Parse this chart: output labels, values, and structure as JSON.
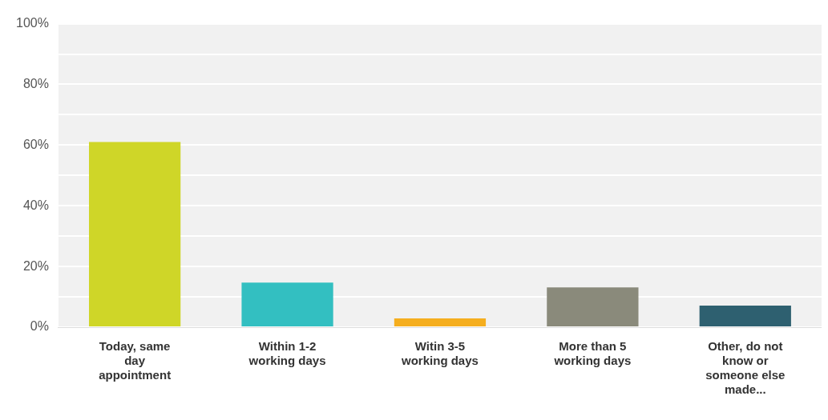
{
  "chart_data": {
    "type": "bar",
    "categories": [
      "Today, same day appointment",
      "Within 1-2 working days",
      "Witin 3-5 working days",
      "More than 5 working days",
      "Other, do not know or someone else made..."
    ],
    "values": [
      61,
      14.7,
      2.9,
      13.1,
      7.1
    ],
    "colors": [
      "#cfd628",
      "#33bfc1",
      "#f5ae1f",
      "#8a8a7b",
      "#2e6070"
    ],
    "ylim": [
      0,
      100
    ],
    "yticks": [
      {
        "value": 0,
        "label": "0%"
      },
      {
        "value": 10,
        "label": null
      },
      {
        "value": 20,
        "label": "20%"
      },
      {
        "value": 30,
        "label": null
      },
      {
        "value": 40,
        "label": "40%"
      },
      {
        "value": 50,
        "label": null
      },
      {
        "value": 60,
        "label": "60%"
      },
      {
        "value": 70,
        "label": null
      },
      {
        "value": 80,
        "label": "80%"
      },
      {
        "value": 90,
        "label": null
      },
      {
        "value": 100,
        "label": "100%"
      }
    ],
    "grid": "y",
    "legend": false
  }
}
